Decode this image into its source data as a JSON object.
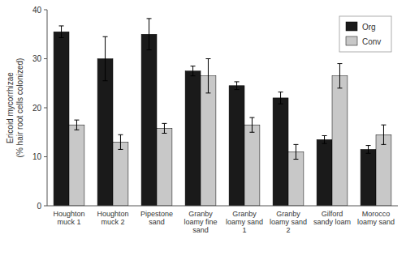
{
  "chart_data": {
    "type": "bar",
    "categories": [
      "Houghton\nmuck 1",
      "Houghton\nmuck 2",
      "Pipestone\nsand",
      "Granby\nloamy fine\nsand",
      "Granby\nloamy sand\n1",
      "Granby\nloamy sand\n2",
      "Gilford\nsandy loam",
      "Morocco\nloamy sand"
    ],
    "series": [
      {
        "name": "Org",
        "color": "#1a1a1a",
        "values": [
          35.5,
          30.0,
          35.0,
          27.5,
          24.5,
          22.0,
          13.5,
          11.5
        ],
        "errors": [
          1.2,
          4.5,
          3.2,
          1.0,
          0.8,
          1.2,
          0.8,
          0.8
        ]
      },
      {
        "name": "Conv",
        "color": "#c8c8c8",
        "values": [
          16.5,
          13.0,
          15.8,
          26.5,
          16.5,
          11.0,
          26.5,
          14.5
        ],
        "errors": [
          1.0,
          1.5,
          1.0,
          3.5,
          1.5,
          1.5,
          2.5,
          2.0
        ]
      }
    ],
    "ylabel": "Ericoid mycorrhizae\n(% hair root cells colonized)",
    "ylim": [
      0,
      40
    ],
    "yticks": [
      0,
      10,
      20,
      30,
      40
    ],
    "grid": false,
    "legend": "upper right"
  }
}
